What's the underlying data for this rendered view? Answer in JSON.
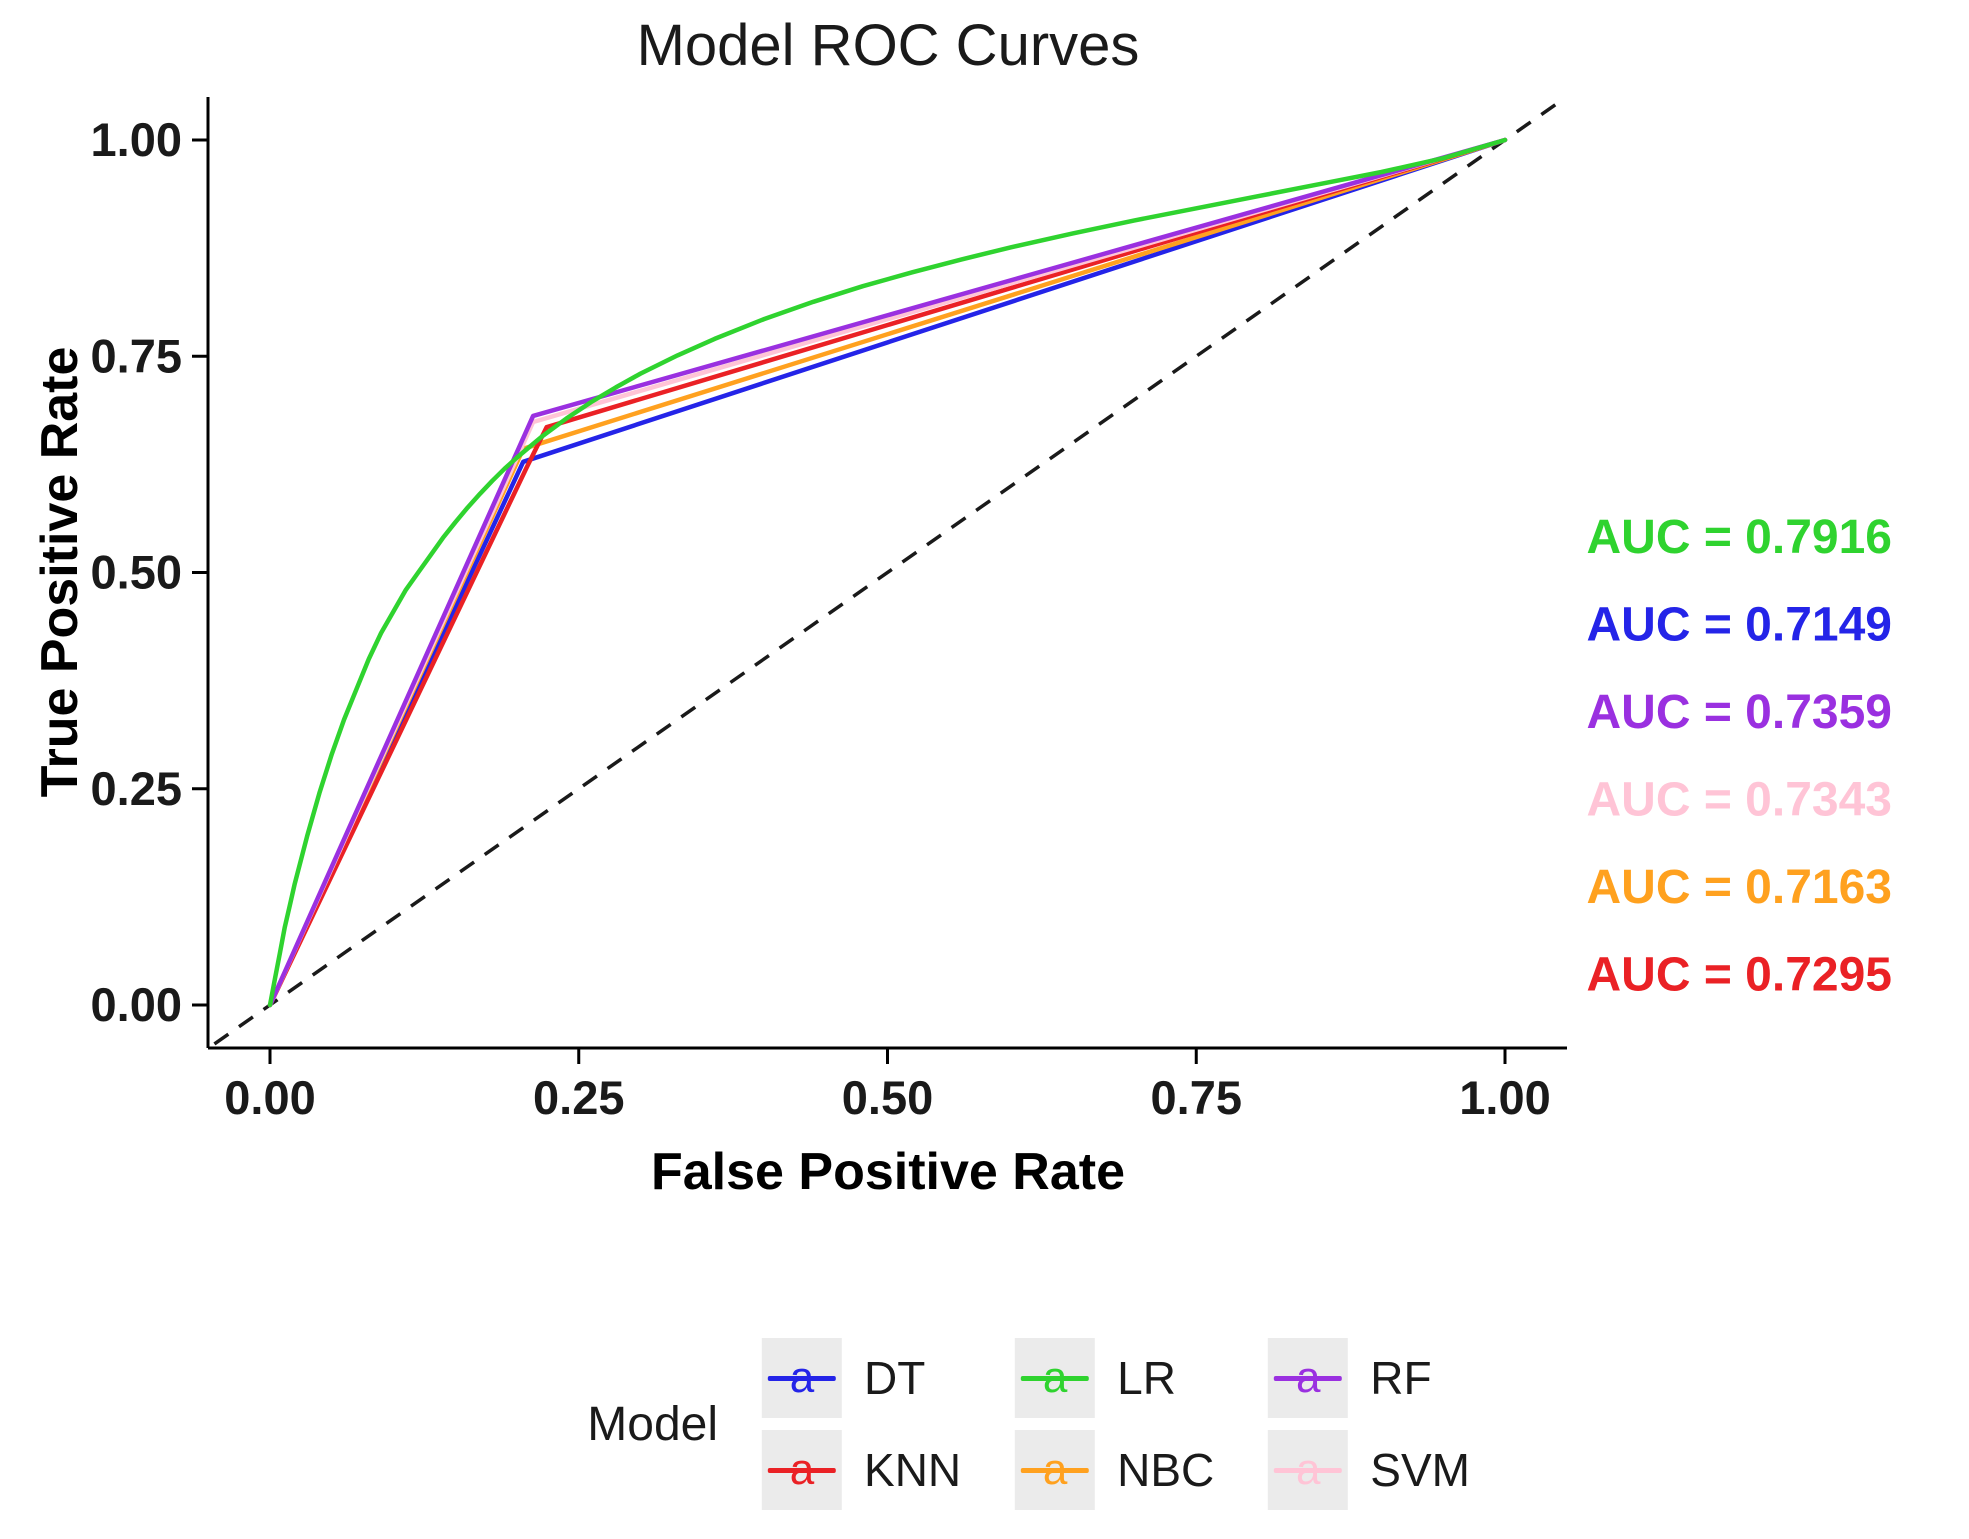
{
  "chart_data": {
    "type": "line",
    "title": "Model ROC Curves",
    "xlabel": "False Positive Rate",
    "ylabel": "True Positive Rate",
    "xlim": [
      0,
      1
    ],
    "ylim": [
      0,
      1
    ],
    "grid": false,
    "x_ticks": [
      {
        "v": 0.0,
        "label": "0.00"
      },
      {
        "v": 0.25,
        "label": "0.25"
      },
      {
        "v": 0.5,
        "label": "0.50"
      },
      {
        "v": 0.75,
        "label": "0.75"
      },
      {
        "v": 1.0,
        "label": "1.00"
      }
    ],
    "y_ticks": [
      {
        "v": 0.0,
        "label": "0.00"
      },
      {
        "v": 0.25,
        "label": "0.25"
      },
      {
        "v": 0.5,
        "label": "0.50"
      },
      {
        "v": 0.75,
        "label": "0.75"
      },
      {
        "v": 1.0,
        "label": "1.00"
      }
    ],
    "diagonal": {
      "style": "dashed",
      "color": "#1a1a1a",
      "from": [
        -0.045,
        -0.045
      ],
      "to": [
        1.047,
        1.047
      ]
    },
    "series": [
      {
        "name": "DT",
        "color": "#2424e8",
        "auc": 0.7149,
        "points": [
          [
            0,
            0
          ],
          [
            0.205,
            0.628
          ],
          [
            1,
            1
          ]
        ]
      },
      {
        "name": "NBC",
        "color": "#ffa11f",
        "auc": 0.7163,
        "points": [
          [
            0,
            0
          ],
          [
            0.205,
            0.643
          ],
          [
            1,
            1
          ]
        ]
      },
      {
        "name": "KNN",
        "color": "#ea2125",
        "auc": 0.7295,
        "points": [
          [
            0,
            0
          ],
          [
            0.208,
            0.622
          ],
          [
            0.224,
            0.668
          ],
          [
            1,
            1
          ]
        ]
      },
      {
        "name": "SVM",
        "color": "#ffc4d6",
        "auc": 0.7343,
        "points": [
          [
            0,
            0
          ],
          [
            0.213,
            0.674
          ],
          [
            1,
            1
          ]
        ]
      },
      {
        "name": "RF",
        "color": "#9a30e0",
        "auc": 0.7359,
        "points": [
          [
            0,
            0
          ],
          [
            0.213,
            0.681
          ],
          [
            1,
            1
          ]
        ]
      },
      {
        "name": "LR",
        "color": "#2fd32f",
        "auc": 0.7916,
        "points": [
          [
            0,
            0
          ],
          [
            0.004,
            0.03
          ],
          [
            0.008,
            0.06
          ],
          [
            0.012,
            0.09
          ],
          [
            0.016,
            0.115
          ],
          [
            0.02,
            0.14
          ],
          [
            0.03,
            0.195
          ],
          [
            0.04,
            0.245
          ],
          [
            0.05,
            0.29
          ],
          [
            0.06,
            0.33
          ],
          [
            0.07,
            0.365
          ],
          [
            0.08,
            0.4
          ],
          [
            0.09,
            0.43
          ],
          [
            0.1,
            0.455
          ],
          [
            0.11,
            0.48
          ],
          [
            0.12,
            0.5
          ],
          [
            0.13,
            0.52
          ],
          [
            0.14,
            0.54
          ],
          [
            0.15,
            0.558
          ],
          [
            0.16,
            0.575
          ],
          [
            0.17,
            0.591
          ],
          [
            0.18,
            0.606
          ],
          [
            0.19,
            0.62
          ],
          [
            0.2,
            0.633
          ],
          [
            0.21,
            0.645
          ],
          [
            0.22,
            0.657
          ],
          [
            0.24,
            0.678
          ],
          [
            0.26,
            0.697
          ],
          [
            0.28,
            0.714
          ],
          [
            0.3,
            0.73
          ],
          [
            0.33,
            0.751
          ],
          [
            0.36,
            0.77
          ],
          [
            0.4,
            0.793
          ],
          [
            0.44,
            0.813
          ],
          [
            0.48,
            0.831
          ],
          [
            0.52,
            0.847
          ],
          [
            0.56,
            0.862
          ],
          [
            0.6,
            0.876
          ],
          [
            0.65,
            0.892
          ],
          [
            0.7,
            0.907
          ],
          [
            0.75,
            0.921
          ],
          [
            0.8,
            0.935
          ],
          [
            0.85,
            0.949
          ],
          [
            0.9,
            0.963
          ],
          [
            0.95,
            0.979
          ],
          [
            1,
            1
          ]
        ]
      }
    ],
    "auc_annotations": [
      {
        "text": "AUC = 0.7916",
        "color": "#2fd32f"
      },
      {
        "text": "AUC = 0.7149",
        "color": "#2424e8"
      },
      {
        "text": "AUC = 0.7359",
        "color": "#9a30e0"
      },
      {
        "text": "AUC = 0.7343",
        "color": "#ffc4d6"
      },
      {
        "text": "AUC = 0.7163",
        "color": "#ffa11f"
      },
      {
        "text": "AUC = 0.7295",
        "color": "#ea2125"
      }
    ],
    "legend": {
      "title": "Model",
      "position": "bottom",
      "key_glyph": "a",
      "entries": [
        {
          "label": "DT",
          "color": "#2424e8"
        },
        {
          "label": "LR",
          "color": "#2fd32f"
        },
        {
          "label": "RF",
          "color": "#9a30e0"
        },
        {
          "label": "KNN",
          "color": "#ea2125"
        },
        {
          "label": "NBC",
          "color": "#ffa11f"
        },
        {
          "label": "SVM",
          "color": "#ffc4d6"
        }
      ]
    }
  }
}
